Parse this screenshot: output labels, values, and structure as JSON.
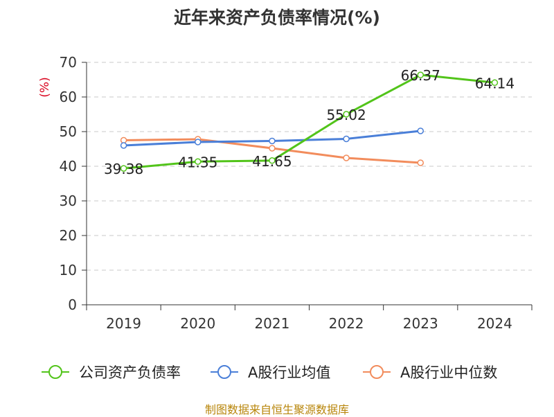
{
  "chart_data": {
    "type": "line",
    "title": "近年来资产负债率情况(%)",
    "ylabel": "(%)",
    "xlabel": "",
    "ylim": [
      0,
      70
    ],
    "yticks": [
      0,
      10,
      20,
      30,
      40,
      50,
      60,
      70
    ],
    "categories": [
      "2019",
      "2020",
      "2021",
      "2022",
      "2023",
      "2024"
    ],
    "grid": true,
    "legend_position": "bottom",
    "series": [
      {
        "name": "公司资产负债率",
        "color": "#52c41a",
        "values": [
          39.38,
          41.35,
          41.65,
          55.02,
          66.37,
          64.14
        ],
        "labels": [
          "39.38",
          "41.35",
          "41.65",
          "55.02",
          "66.37",
          "64.14"
        ]
      },
      {
        "name": "A股行业均值",
        "color": "#4a7fd8",
        "values": [
          46.0,
          47.0,
          47.3,
          47.9,
          50.2,
          null
        ]
      },
      {
        "name": "A股行业中位数",
        "color": "#f28c5c",
        "values": [
          47.5,
          47.8,
          45.2,
          42.4,
          41.0,
          null
        ]
      }
    ]
  },
  "source_text": "制图数据来自恒生聚源数据库"
}
